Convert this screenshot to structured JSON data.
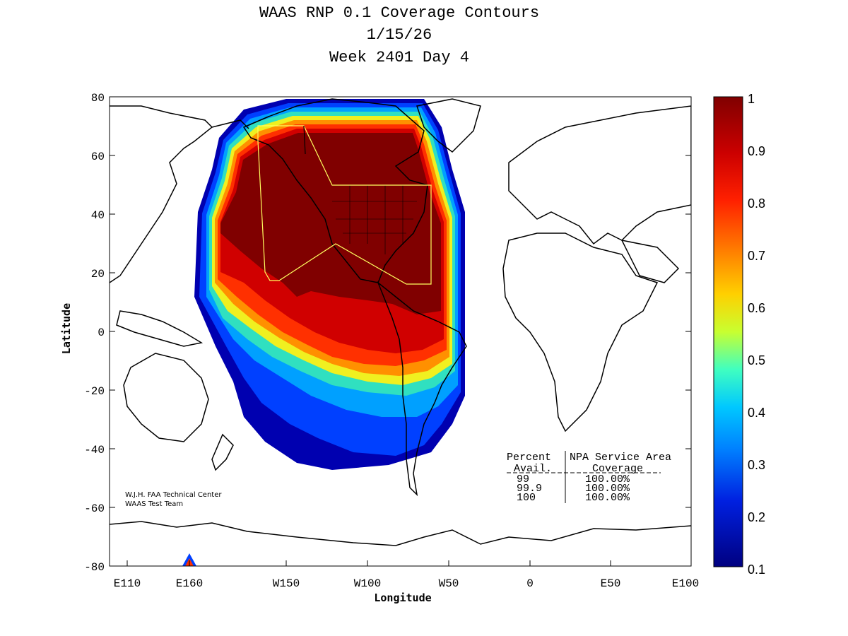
{
  "title": {
    "line1": "WAAS RNP 0.1 Coverage Contours",
    "line2": "1/15/26",
    "line3": "Week 2401 Day 4"
  },
  "axes": {
    "xlabel": "Longitude",
    "ylabel": "Latitude",
    "xticks": [
      "E110",
      "E160",
      "W150",
      "W100",
      "W50",
      "0",
      "E50",
      "E100"
    ],
    "yticks": [
      "80",
      "60",
      "40",
      "20",
      "0",
      "-20",
      "-40",
      "-60",
      "-80"
    ]
  },
  "colorbar": {
    "ticks": [
      "1",
      "0.9",
      "0.8",
      "0.7",
      "0.6",
      "0.5",
      "0.4",
      "0.3",
      "0.2",
      "0.1"
    ]
  },
  "credit": {
    "line1": "W.J.H. FAA Technical Center",
    "line2": "WAAS Test Team"
  },
  "legend": {
    "header1": "Percent",
    "header2": "NPA Service Area",
    "sub1": "Avail.",
    "sub2": "Coverage",
    "rows": [
      {
        "avail": "99",
        "coverage": "100.00%"
      },
      {
        "avail": "99.9",
        "coverage": "100.00%"
      },
      {
        "avail": "100",
        "coverage": "100.00%"
      }
    ]
  },
  "colors": {
    "high": "#800000",
    "low": "#000080"
  }
}
